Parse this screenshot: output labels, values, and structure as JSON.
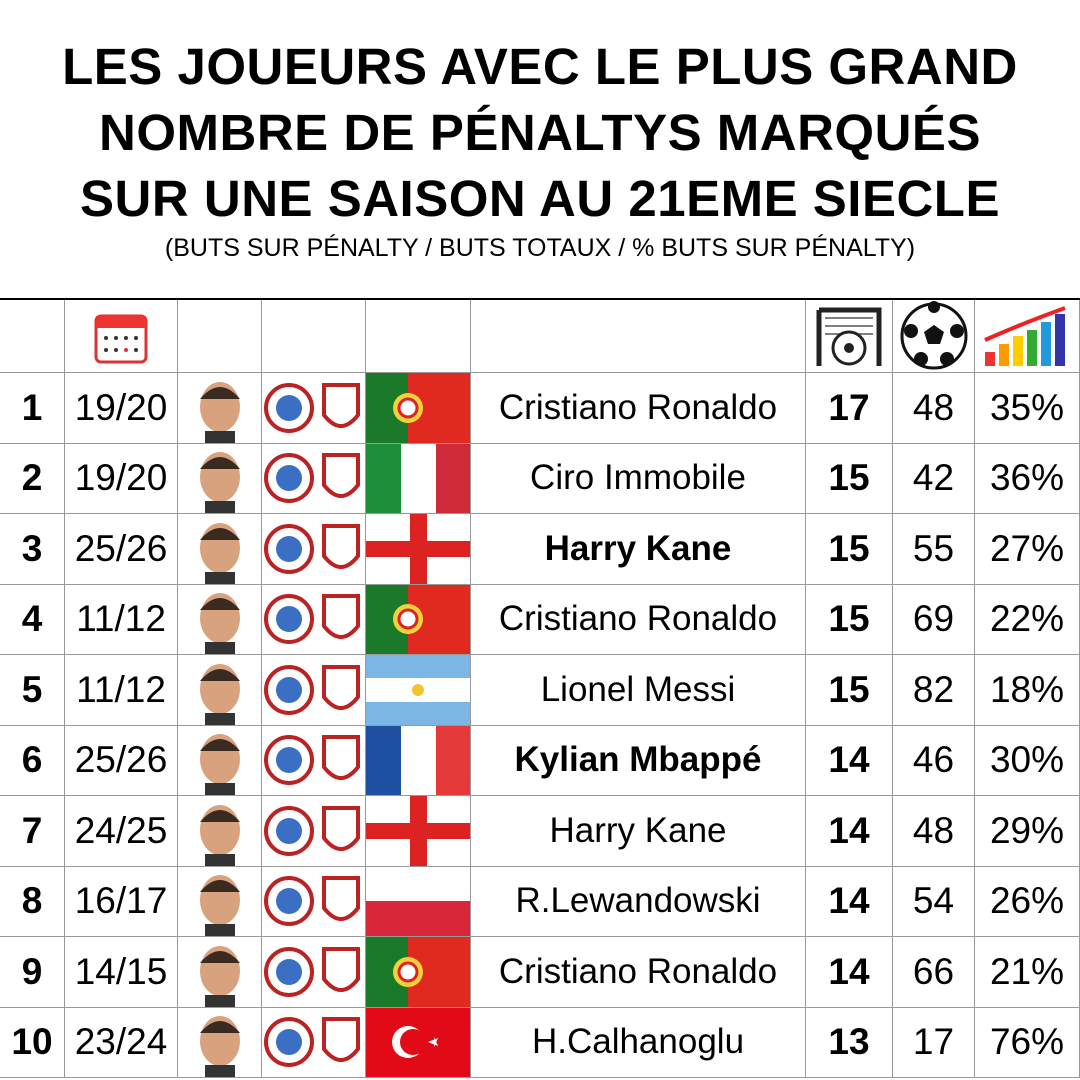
{
  "header": {
    "title_lines": [
      "LES JOUEURS AVEC LE PLUS GRAND",
      "NOMBRE DE PÉNALTYS MARQUÉS",
      "SUR UNE SAISON AU 21EME SIECLE"
    ],
    "subtitle": "(BUTS SUR PÉNALTY / BUTS TOTAUX / % BUTS SUR PÉNALTY)"
  },
  "table": {
    "rows": [
      {
        "rank": "1",
        "season": "19/20",
        "name": "Cristiano Ronaldo",
        "penalties": "17",
        "goals": "48",
        "pct": "35%",
        "highlight": false
      },
      {
        "rank": "2",
        "season": "19/20",
        "name": "Ciro Immobile",
        "penalties": "15",
        "goals": "42",
        "pct": "36%",
        "highlight": false
      },
      {
        "rank": "3",
        "season": "25/26",
        "name": "Harry Kane",
        "penalties": "15",
        "goals": "55",
        "pct": "27%",
        "highlight": true
      },
      {
        "rank": "4",
        "season": "11/12",
        "name": "Cristiano Ronaldo",
        "penalties": "15",
        "goals": "69",
        "pct": "22%",
        "highlight": false
      },
      {
        "rank": "5",
        "season": "11/12",
        "name": "Lionel Messi",
        "penalties": "15",
        "goals": "82",
        "pct": "18%",
        "highlight": false
      },
      {
        "rank": "6",
        "season": "25/26",
        "name": "Kylian Mbappé",
        "penalties": "14",
        "goals": "46",
        "pct": "30%",
        "highlight": true
      },
      {
        "rank": "7",
        "season": "24/25",
        "name": "Harry Kane",
        "penalties": "14",
        "goals": "48",
        "pct": "29%",
        "highlight": false
      },
      {
        "rank": "8",
        "season": "16/17",
        "name": "R.Lewandowski",
        "penalties": "14",
        "goals": "54",
        "pct": "26%",
        "highlight": false
      },
      {
        "rank": "9",
        "season": "14/15",
        "name": "Cristiano Ronaldo",
        "penalties": "14",
        "goals": "66",
        "pct": "21%",
        "highlight": false
      },
      {
        "rank": "10",
        "season": "23/24",
        "name": "H.Calhanoglu",
        "penalties": "13",
        "goals": "17",
        "pct": "76%",
        "highlight": false
      }
    ]
  }
}
